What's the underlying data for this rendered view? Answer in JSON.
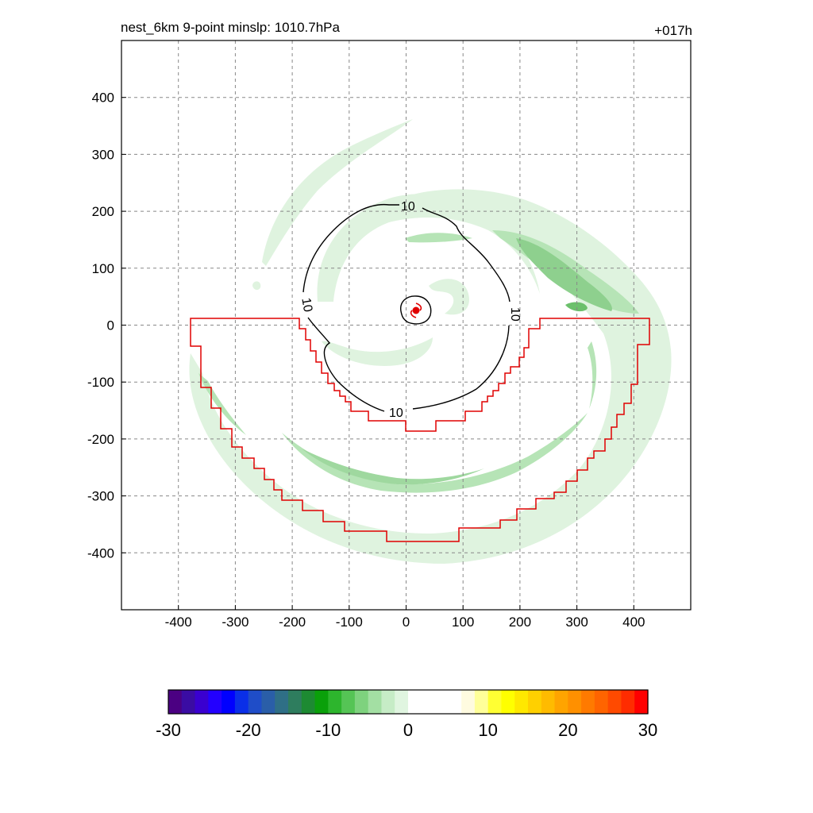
{
  "title_left": "nest_6km  9-point minslp: 1010.7hPa",
  "title_right": "+017h",
  "chart_data": {
    "type": "heatmap",
    "xlim": [
      -500,
      500
    ],
    "ylim": [
      -500,
      500
    ],
    "x_ticks": [
      -400,
      -300,
      -200,
      -100,
      0,
      100,
      200,
      300,
      400
    ],
    "x_tick_labels": [
      "-400",
      "-300",
      "-200",
      "-100",
      "0",
      "100",
      "200",
      "300",
      "400"
    ],
    "y_ticks": [
      400,
      300,
      200,
      100,
      0,
      -100,
      -200,
      -300,
      -400
    ],
    "y_tick_labels": [
      "400",
      "300",
      "200",
      "100",
      "0",
      "-100",
      "-200",
      "-300",
      "-400"
    ],
    "grid": true,
    "contour_level_label": "10",
    "storm_center": [
      18,
      25
    ],
    "colorbar": {
      "min": -30,
      "max": 30,
      "ticks": [
        -30,
        -20,
        -10,
        0,
        10,
        20,
        30
      ],
      "tick_labels": [
        "-30",
        "-20",
        "-10",
        "0",
        "10",
        "20",
        "30"
      ],
      "colors": [
        "#4b0082",
        "#3a0ca3",
        "#3a00d0",
        "#2300ff",
        "#0000ff",
        "#0a2fe8",
        "#1f4dc8",
        "#2a5ea8",
        "#2f6f86",
        "#2e7d5e",
        "#1d8a32",
        "#0aa00a",
        "#2db52d",
        "#55c455",
        "#7ed27e",
        "#a3dfa3",
        "#c6ecc6",
        "#e0f5e0",
        "#ffffff",
        "#ffffff",
        "#ffffff",
        "#ffffff",
        "#fffbe0",
        "#ffff99",
        "#ffff33",
        "#ffff00",
        "#ffe800",
        "#ffd000",
        "#ffbb00",
        "#ffa400",
        "#ff9000",
        "#ff7a00",
        "#ff6400",
        "#ff4a00",
        "#ff2c00",
        "#ff0000"
      ]
    }
  }
}
